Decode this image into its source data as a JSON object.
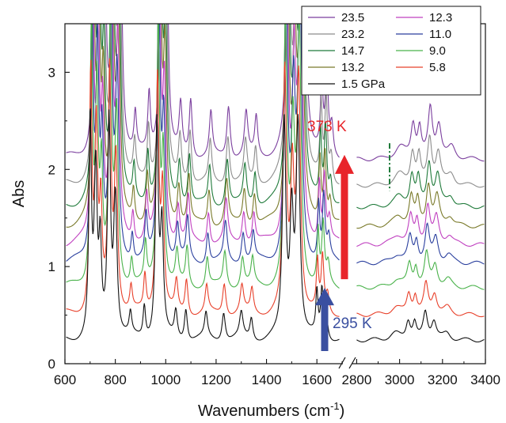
{
  "chart_data": {
    "type": "line",
    "xlabel": "Wavenumbers (cm",
    "xlabel_sup": "-1",
    "xlabel_end": ")",
    "ylabel": "Abs",
    "ylim": [
      0,
      3.5
    ],
    "y_ticks": [
      "0",
      "1",
      "2",
      "3"
    ],
    "x_ticks_left": [
      "600",
      "800",
      "1000",
      "1200",
      "1400",
      "1600"
    ],
    "x_ticks_right": [
      "2800",
      "3000",
      "3200",
      "3400"
    ],
    "x_axis_break": [
      1700,
      2780
    ],
    "x_ranges": [
      [
        600,
        1700
      ],
      [
        2780,
        3400
      ]
    ],
    "legend": {
      "position": "top-right",
      "columns": 2
    },
    "series": [
      {
        "name": "23.5",
        "color": "#7b3f9e",
        "offset": 2.1
      },
      {
        "name": "23.2",
        "color": "#8c8c8c",
        "offset": 1.83
      },
      {
        "name": "14.7",
        "color": "#1f7a3a",
        "offset": 1.61
      },
      {
        "name": "13.2",
        "color": "#7a7a2a",
        "offset": 1.41
      },
      {
        "name": "12.3",
        "color": "#c040c0",
        "offset": 1.22
      },
      {
        "name": "11.0",
        "color": "#2a3f9e",
        "offset": 1.03
      },
      {
        "name": "9.0",
        "color": "#49b24a",
        "offset": 0.78
      },
      {
        "name": "5.8",
        "color": "#e8402a",
        "offset": 0.5
      },
      {
        "name": "1.5 GPa",
        "color": "#111111",
        "offset": 0.24
      }
    ],
    "legend_order": [
      "23.5",
      "12.3",
      "23.2",
      "11.0",
      "14.7",
      "9.0",
      "13.2",
      "5.8",
      "1.5 GPa"
    ],
    "peaks_left": [
      [
        700,
        4.0,
        6
      ],
      [
        722,
        3.0,
        7
      ],
      [
        740,
        1.6,
        6
      ],
      [
        775,
        4.0,
        7
      ],
      [
        800,
        2.6,
        8
      ],
      [
        860,
        0.4,
        6
      ],
      [
        915,
        0.6,
        6
      ],
      [
        965,
        4.0,
        7
      ],
      [
        985,
        2.0,
        7
      ],
      [
        1040,
        0.5,
        7
      ],
      [
        1080,
        0.6,
        7
      ],
      [
        1160,
        0.45,
        7
      ],
      [
        1230,
        0.55,
        8
      ],
      [
        1300,
        0.45,
        8
      ],
      [
        1340,
        0.4,
        7
      ],
      [
        1470,
        4.0,
        8
      ],
      [
        1500,
        2.2,
        8
      ],
      [
        1525,
        4.0,
        9
      ],
      [
        1600,
        0.8,
        5
      ],
      [
        1620,
        0.9,
        6
      ],
      [
        1640,
        0.3,
        7
      ]
    ],
    "peaks_right": [
      [
        2980,
        0.12,
        30
      ],
      [
        3040,
        0.35,
        12
      ],
      [
        3070,
        0.3,
        10
      ],
      [
        3120,
        0.5,
        12
      ],
      [
        3160,
        0.35,
        14
      ],
      [
        3220,
        0.12,
        20
      ]
    ],
    "annotations": [
      {
        "text": "373 K",
        "color": "#e8242a",
        "arrow_from_y": 0.87,
        "arrow_to_y": 2.15,
        "arrow_x": 2740
      },
      {
        "text": "295 K",
        "color": "#3a4fa0",
        "arrow_from_y": 0.13,
        "arrow_to_y": 0.78,
        "arrow_x": 2735
      }
    ],
    "dashed_marker": {
      "x": 2975,
      "y_from": 1.78,
      "y_to": 2.27,
      "color": "#1f7a3a"
    }
  }
}
